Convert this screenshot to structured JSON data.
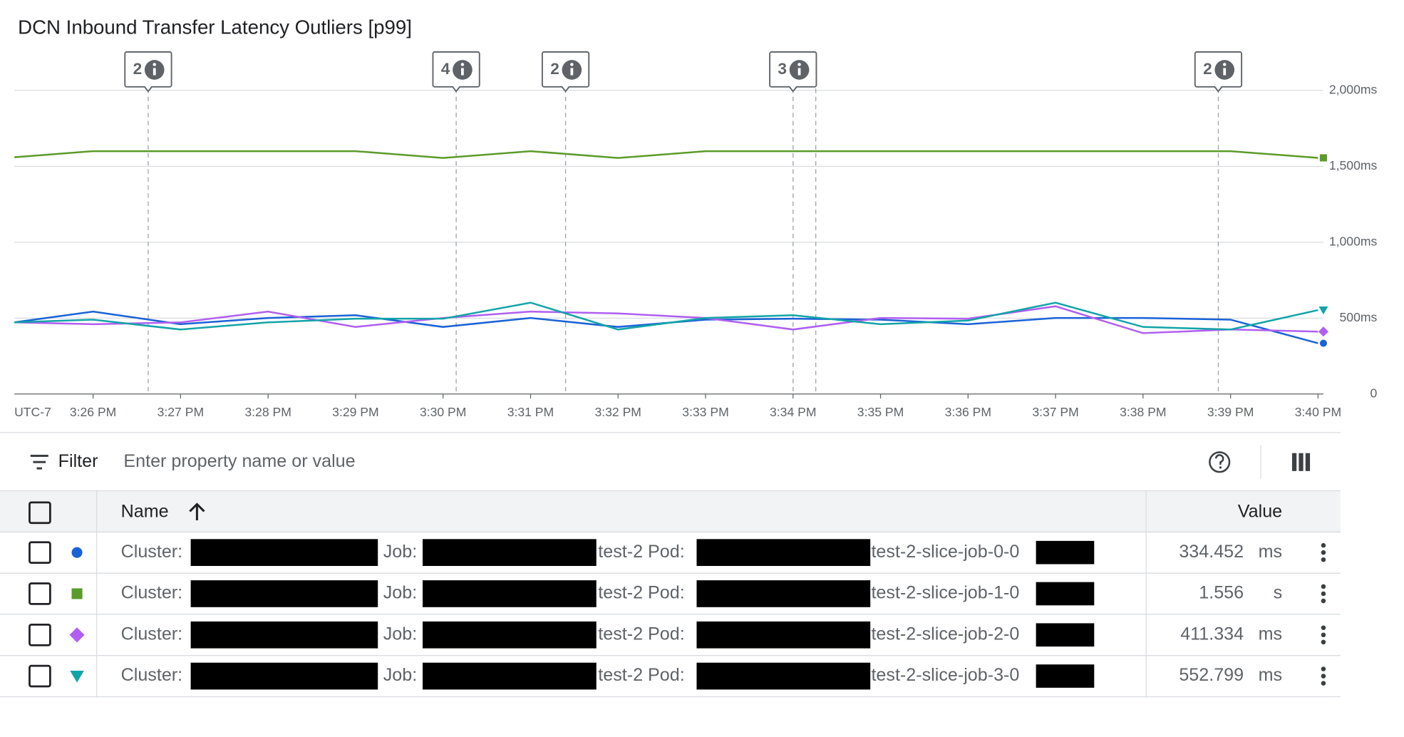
{
  "chart_data": {
    "type": "line",
    "title": "DCN Inbound Transfer Latency Outliers [p99]",
    "x_label": "UTC-7",
    "x": [
      25.1,
      26,
      27,
      28,
      29,
      30,
      31,
      32,
      33,
      34,
      35,
      36,
      37,
      38,
      39,
      40
    ],
    "xlim": [
      25.1,
      40
    ],
    "xticks": [
      {
        "value": 26,
        "label": "3:26 PM"
      },
      {
        "value": 27,
        "label": "3:27 PM"
      },
      {
        "value": 28,
        "label": "3:28 PM"
      },
      {
        "value": 29,
        "label": "3:29 PM"
      },
      {
        "value": 30,
        "label": "3:30 PM"
      },
      {
        "value": 31,
        "label": "3:31 PM"
      },
      {
        "value": 32,
        "label": "3:32 PM"
      },
      {
        "value": 33,
        "label": "3:33 PM"
      },
      {
        "value": 34,
        "label": "3:34 PM"
      },
      {
        "value": 35,
        "label": "3:35 PM"
      },
      {
        "value": 36,
        "label": "3:36 PM"
      },
      {
        "value": 37,
        "label": "3:37 PM"
      },
      {
        "value": 38,
        "label": "3:38 PM"
      },
      {
        "value": 39,
        "label": "3:39 PM"
      },
      {
        "value": 40,
        "label": "3:40 PM"
      }
    ],
    "ylim": [
      0,
      2000
    ],
    "yticks": [
      0,
      {
        "value": 500,
        "label": "500ms"
      },
      {
        "value": 1000,
        "label": "1,000ms"
      },
      {
        "value": 1500,
        "label": "1,500ms"
      },
      {
        "value": 2000,
        "label": "2,000ms"
      }
    ],
    "grid": true,
    "series": [
      {
        "name": "test-2-slice-job-0-0",
        "color": "#1a62d6",
        "marker": "circle",
        "values": [
          472,
          543,
          460,
          501,
          519,
          442,
          501,
          442,
          490,
          496,
          490,
          460,
          501,
          501,
          490,
          334.452
        ]
      },
      {
        "name": "test-2-slice-job-1-0",
        "color": "#5b9b2a",
        "marker": "square",
        "values": [
          1560,
          1600,
          1600,
          1600,
          1600,
          1555,
          1600,
          1555,
          1600,
          1600,
          1600,
          1600,
          1600,
          1600,
          1600,
          1556
        ]
      },
      {
        "name": "test-2-slice-job-2-0",
        "color": "#b05ff0",
        "marker": "diamond",
        "values": [
          472,
          460,
          472,
          543,
          442,
          501,
          543,
          531,
          501,
          425,
          501,
          496,
          578,
          401,
          425,
          411.334
        ]
      },
      {
        "name": "test-2-slice-job-3-0",
        "color": "#12a4a8",
        "marker": "triangle",
        "values": [
          472,
          490,
          425,
          472,
          496,
          496,
          602,
          425,
          501,
          519,
          460,
          484,
          602,
          442,
          425,
          552.799
        ]
      }
    ],
    "annotations": [
      {
        "x": [
          26.63
        ],
        "count": 2
      },
      {
        "x": [
          30.15
        ],
        "count": 4
      },
      {
        "x": [
          31.4
        ],
        "count": 2
      },
      {
        "x": [
          34.0,
          34.26
        ],
        "count": 3
      },
      {
        "x": [
          38.86
        ],
        "count": 2
      }
    ]
  },
  "filter": {
    "label": "Filter",
    "placeholder": "Enter property name or value"
  },
  "table": {
    "columns": [
      "Name",
      "Value"
    ],
    "rows": [
      {
        "cluster": "Cluster:",
        "job": "Job:",
        "pod": "test-2 Pod:",
        "value": 334.452,
        "unit": "ms"
      },
      {
        "cluster": "Cluster:",
        "job": "Job:",
        "pod": "test-2 Pod:",
        "value": 1.556,
        "unit": "s"
      },
      {
        "cluster": "Cluster:",
        "job": "Job:",
        "pod": "test-2 Pod:",
        "value": 411.334,
        "unit": "ms"
      },
      {
        "cluster": "Cluster:",
        "job": "Job:",
        "pod": "test-2 Pod:",
        "value": 552.799,
        "unit": "ms"
      }
    ]
  }
}
